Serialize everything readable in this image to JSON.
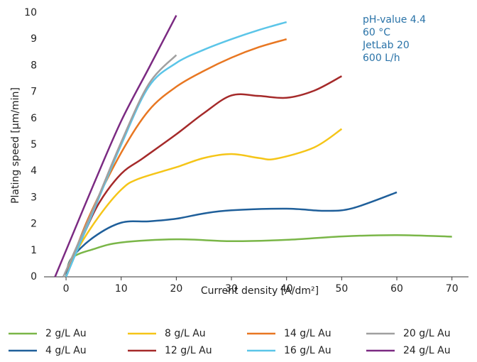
{
  "chart_data": {
    "type": "line",
    "xlabel": "Current density [A/dm²]",
    "ylabel": "Plating speed [µm/min]",
    "annotations": [
      "pH-value 4.4",
      "60 °C",
      "JetLab 20",
      "600 L/h"
    ],
    "xlim": [
      -4,
      73
    ],
    "ylim": [
      0,
      10
    ],
    "xticks": [
      0,
      10,
      20,
      30,
      40,
      50,
      60,
      70
    ],
    "yticks": [
      0,
      1,
      2,
      3,
      4,
      5,
      6,
      7,
      8,
      9,
      10
    ],
    "series": [
      {
        "name": "2 g/L Au",
        "color": "#7ab648",
        "x": [
          0,
          1,
          5,
          10,
          20,
          30,
          40,
          50,
          60,
          70
        ],
        "values": [
          0,
          0.7,
          1.05,
          1.3,
          1.42,
          1.35,
          1.4,
          1.53,
          1.58,
          1.52
        ]
      },
      {
        "name": "4 g/L Au",
        "color": "#1f5f9a",
        "x": [
          0,
          1,
          5,
          10,
          15,
          20,
          25,
          30,
          40,
          47,
          52,
          60
        ],
        "values": [
          0,
          0.7,
          1.5,
          2.05,
          2.1,
          2.2,
          2.4,
          2.52,
          2.58,
          2.5,
          2.6,
          3.2
        ]
      },
      {
        "name": "8 g/L Au",
        "color": "#f5c518",
        "x": [
          0,
          2,
          6,
          10,
          13,
          20,
          25,
          30,
          35,
          38,
          45,
          50
        ],
        "values": [
          0,
          1,
          2.3,
          3.3,
          3.7,
          4.15,
          4.5,
          4.65,
          4.5,
          4.47,
          4.9,
          5.6
        ]
      },
      {
        "name": "12 g/L Au",
        "color": "#a52a2a",
        "x": [
          0,
          3,
          6,
          10,
          14,
          20,
          25,
          30,
          35,
          40,
          45,
          50
        ],
        "values": [
          0,
          1.5,
          2.8,
          3.9,
          4.5,
          5.4,
          6.2,
          6.87,
          6.85,
          6.78,
          7.05,
          7.6
        ]
      },
      {
        "name": "14 g/L Au",
        "color": "#e87722",
        "x": [
          0,
          4,
          10,
          15,
          20,
          25,
          30,
          35,
          40
        ],
        "values": [
          0,
          2.2,
          4.7,
          6.3,
          7.2,
          7.8,
          8.3,
          8.7,
          9.0
        ]
      },
      {
        "name": "16 g/L Au",
        "color": "#5bc5e8",
        "x": [
          0,
          5,
          10,
          15,
          20,
          25,
          30,
          35,
          40
        ],
        "values": [
          0,
          2.5,
          5,
          7.2,
          8.1,
          8.6,
          9.0,
          9.35,
          9.65
        ]
      },
      {
        "name": "20 g/L Au",
        "color": "#a0a0a0",
        "x": [
          -0.5,
          5,
          10,
          15,
          20
        ],
        "values": [
          0,
          2.6,
          5.1,
          7.3,
          8.4
        ]
      },
      {
        "name": "24 g/L Au",
        "color": "#7b2a82",
        "x": [
          -2,
          0,
          5,
          10,
          15,
          20
        ],
        "values": [
          0,
          1,
          3.5,
          5.9,
          7.9,
          9.9
        ]
      }
    ]
  }
}
